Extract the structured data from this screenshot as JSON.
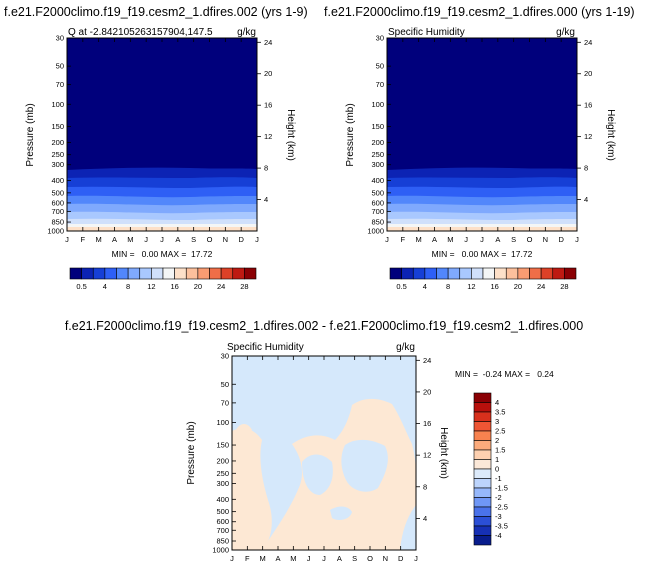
{
  "chart_data": [
    {
      "type": "heatmap",
      "title": "f.e21.F2000climo.f19_f19.cesm2_1.dfires.002 (yrs 1-9)",
      "subtitle": "Q at -2.842105263157904,147.5",
      "units": "g/kg",
      "ylabel": "Pressure (mb)",
      "ylabel_right": "Height (km)",
      "x": [
        "J",
        "F",
        "M",
        "A",
        "M",
        "J",
        "J",
        "A",
        "S",
        "O",
        "N",
        "D",
        "J"
      ],
      "pressure_ticks": [
        "30",
        "50",
        "70",
        "100",
        "150",
        "200",
        "250",
        "300",
        "400",
        "500",
        "600",
        "700",
        "850",
        "1000"
      ],
      "height_ticks": [
        "24",
        "20",
        "16",
        "12",
        "8",
        "4"
      ],
      "min_max": "MIN =   0.00 MAX =  17.72",
      "colorbar": [
        "0.5",
        "4",
        "8",
        "12",
        "16",
        "20",
        "24",
        "28"
      ],
      "colors": [
        "#00007c",
        "#0c23b4",
        "#163fd6",
        "#2e5ff5",
        "#5287fb",
        "#7fa9fd",
        "#a9c8fe",
        "#d0e0fb",
        "#f4f6f6",
        "#fde0c8",
        "#fcc09c",
        "#f99c72",
        "#f06e48",
        "#dd4127",
        "#be1a12",
        "#8a0004"
      ]
    },
    {
      "type": "heatmap",
      "title": "f.e21.F2000climo.f19_f19.cesm2_1.dfires.000 (yrs 1-19)",
      "subtitle": "Specific Humidity",
      "units": "g/kg",
      "ylabel": "Pressure (mb)",
      "ylabel_right": "Height (km)",
      "x": [
        "J",
        "F",
        "M",
        "A",
        "M",
        "J",
        "J",
        "A",
        "S",
        "O",
        "N",
        "D",
        "J"
      ],
      "pressure_ticks": [
        "30",
        "50",
        "70",
        "100",
        "150",
        "200",
        "250",
        "300",
        "400",
        "500",
        "600",
        "700",
        "850",
        "1000"
      ],
      "height_ticks": [
        "24",
        "20",
        "16",
        "12",
        "8",
        "4"
      ],
      "min_max": "MIN =   0.00 MAX =  17.72",
      "colorbar": [
        "0.5",
        "4",
        "8",
        "12",
        "16",
        "20",
        "24",
        "28"
      ]
    },
    {
      "type": "heatmap",
      "title": "f.e21.F2000climo.f19_f19.cesm2_1.dfires.002 - f.e21.F2000climo.f19_f19.cesm2_1.dfires.000",
      "subtitle": "Specific Humidity",
      "units": "g/kg",
      "ylabel": "Pressure (mb)",
      "ylabel_right": "Height (km)",
      "x": [
        "J",
        "F",
        "M",
        "A",
        "M",
        "J",
        "J",
        "A",
        "S",
        "O",
        "N",
        "D",
        "J"
      ],
      "pressure_ticks": [
        "30",
        "50",
        "70",
        "100",
        "150",
        "200",
        "250",
        "300",
        "400",
        "500",
        "600",
        "700",
        "850",
        "1000"
      ],
      "height_ticks": [
        "24",
        "20",
        "16",
        "12",
        "8",
        "4"
      ],
      "min_max": "MIN =  -0.24 MAX =   0.24",
      "colorbar": [
        "4",
        "3.5",
        "3",
        "2.5",
        "2",
        "1.5",
        "1",
        "0",
        "-1",
        "-1.5",
        "-2",
        "-2.5",
        "-3",
        "-3.5",
        "-4"
      ],
      "colors": [
        "#8a0004",
        "#b8100c",
        "#d8301c",
        "#ee5534",
        "#f8824f",
        "#fcab7c",
        "#fdd0b0",
        "#fbe8d8",
        "#dceafa",
        "#bcd4fc",
        "#96b8fb",
        "#6f97f6",
        "#4a72ea",
        "#2b4fd6",
        "#1630b5",
        "#081c8c"
      ],
      "background_color": "#d5e8fb",
      "anomaly_color": "#fde8d4"
    }
  ]
}
